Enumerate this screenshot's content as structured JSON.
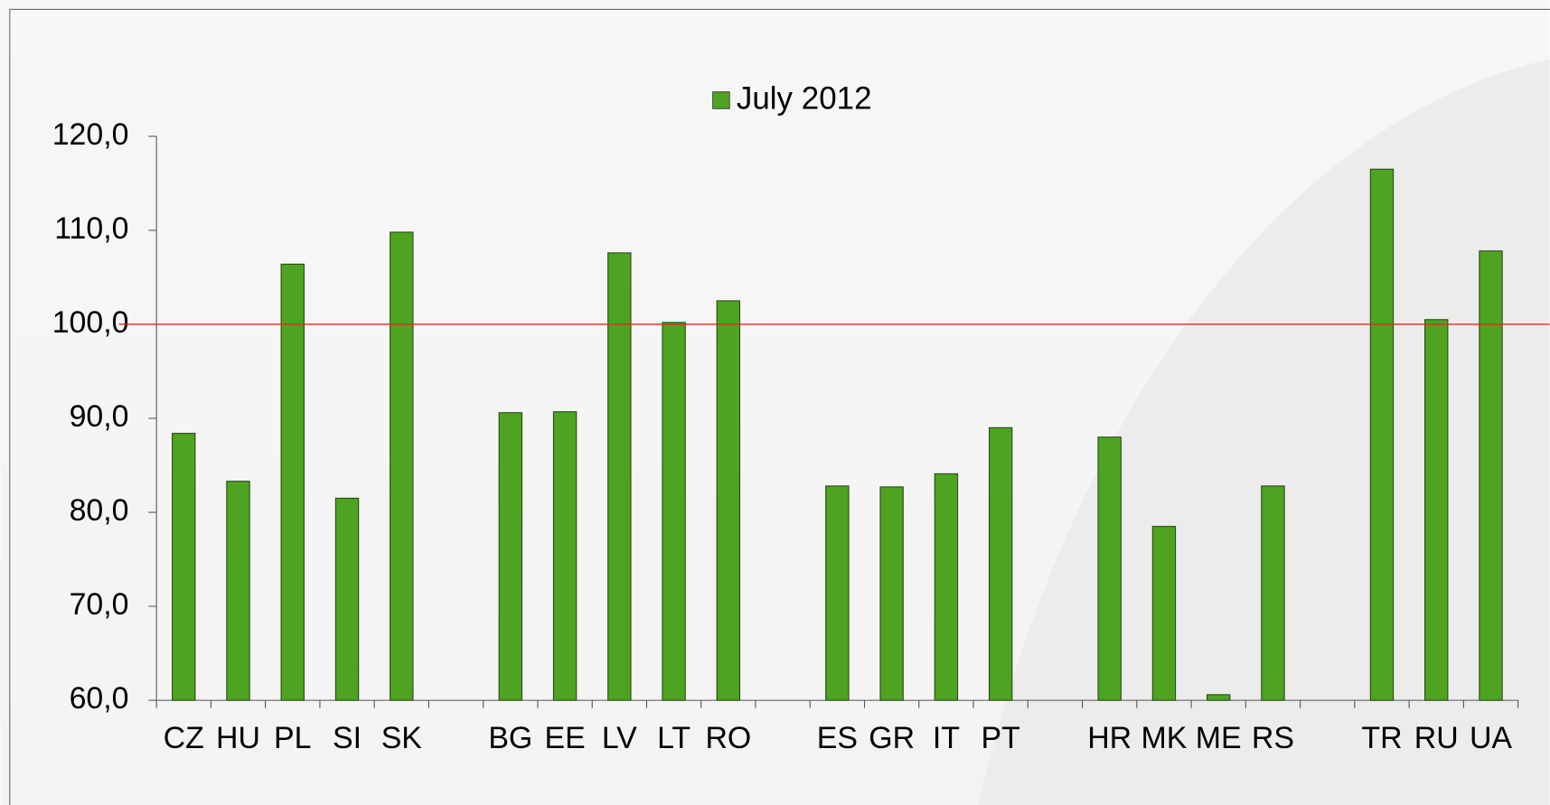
{
  "chart_data": {
    "type": "bar",
    "legend": "July 2012",
    "color": "#4ea321",
    "categories": [
      "CZ",
      "HU",
      "PL",
      "SI",
      "SK",
      null,
      "BG",
      "EE",
      "LV",
      "LT",
      "RO",
      null,
      "ES",
      "GR",
      "IT",
      "PT",
      null,
      "HR",
      "MK",
      "ME",
      "RS",
      null,
      "TR",
      "RU",
      "UA"
    ],
    "values": [
      88.4,
      83.3,
      106.4,
      81.5,
      109.8,
      null,
      90.6,
      90.7,
      107.6,
      100.2,
      102.5,
      null,
      82.8,
      82.7,
      84.1,
      89.0,
      null,
      88.0,
      78.5,
      60.6,
      82.8,
      null,
      116.5,
      100.5,
      107.8
    ],
    "ylim": [
      60,
      120
    ],
    "yticks": [
      {
        "value": 60,
        "label": "60,0"
      },
      {
        "value": 70,
        "label": "70,0"
      },
      {
        "value": 80,
        "label": "80,0"
      },
      {
        "value": 90,
        "label": "90,0"
      },
      {
        "value": 100,
        "label": "100,0"
      },
      {
        "value": 110,
        "label": "110,0"
      },
      {
        "value": 120,
        "label": "120,0"
      }
    ],
    "reference_line": 100,
    "reference_color": "#e8261c"
  }
}
